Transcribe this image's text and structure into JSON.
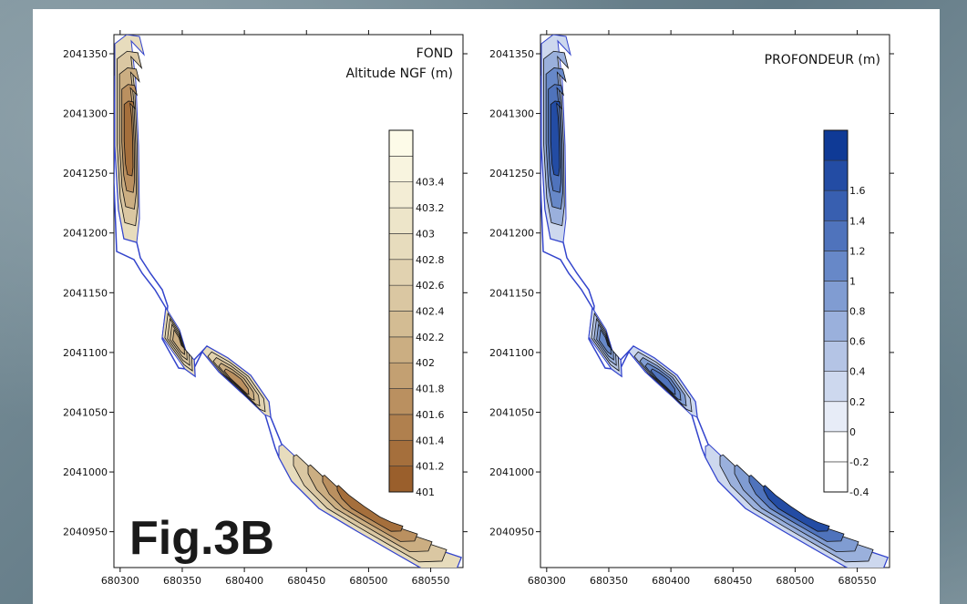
{
  "figure_label": "Fig.3B",
  "colors": {
    "fond_scale": [
      "#9a5f2c",
      "#a56f3c",
      "#b0804e",
      "#ba9060",
      "#c3a072",
      "#cbae82",
      "#d3bc93",
      "#dac7a2",
      "#e1d2b0",
      "#e7dcbd",
      "#ede5c9",
      "#f3edd5",
      "#f8f4df",
      "#fdfbe8"
    ],
    "prof_scale": [
      "#ffffff",
      "#ffffff",
      "#e7ecf7",
      "#cdd8ee",
      "#b4c4e5",
      "#9ab0dc",
      "#809cd2",
      "#6788c8",
      "#4f73bc",
      "#385fb0",
      "#234ca4",
      "#0f3a96"
    ],
    "outline": "#3344cc",
    "contour": "#111111"
  },
  "chart_data": [
    {
      "type": "contour-map",
      "title": "FOND",
      "subtitle": "Altitude NGF (m)",
      "x_ticks": [
        680300,
        680350,
        680400,
        680450,
        680500,
        680550
      ],
      "y_ticks": [
        2040950,
        2041000,
        2041050,
        2041100,
        2041150,
        2041200,
        2041250,
        2041300,
        2041350
      ],
      "xlim": [
        680295,
        680576
      ],
      "ylim": [
        2040920,
        2041366
      ],
      "legend_levels": [
        401,
        401.2,
        401.4,
        401.6,
        401.8,
        402,
        402.2,
        402.4,
        402.6,
        402.8,
        403,
        403.2,
        403.4
      ],
      "legend_labels": [
        "401",
        "401.2",
        "401.4",
        "401.6",
        "401.8",
        "402",
        "402.2",
        "402.4",
        "402.6",
        "402.8",
        "403",
        "403.2",
        "403.4"
      ],
      "legend_placement": "right"
    },
    {
      "type": "contour-map",
      "title": "PROFONDEUR (m)",
      "x_ticks": [
        680300,
        680350,
        680400,
        680450,
        680500,
        680550
      ],
      "y_ticks": [
        2040950,
        2041000,
        2041050,
        2041100,
        2041150,
        2041200,
        2041250,
        2041300,
        2041350
      ],
      "xlim": [
        680295,
        680576
      ],
      "ylim": [
        2040920,
        2041366
      ],
      "legend_levels": [
        -0.4,
        -0.2,
        0,
        0.2,
        0.4,
        0.6,
        0.8,
        1,
        1.2,
        1.4,
        1.6
      ],
      "legend_labels": [
        "-0.4",
        "-0.2",
        "0",
        "0.2",
        "0.4",
        "0.6",
        "0.8",
        "1",
        "1.2",
        "1.4",
        "1.6"
      ],
      "legend_placement": "right"
    }
  ]
}
